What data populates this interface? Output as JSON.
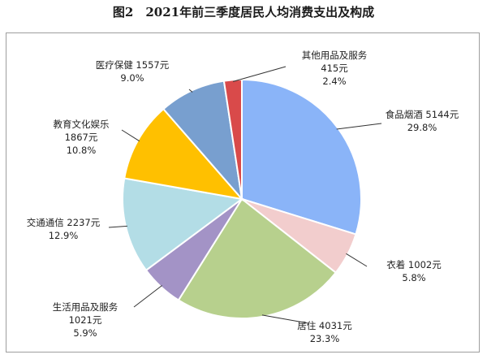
{
  "title": "图2　2021年前三季度居民人均消费支出及构成",
  "chart_data": {
    "type": "pie",
    "title": "图2　2021年前三季度居民人均消费支出及构成",
    "slices": [
      {
        "name": "食品烟酒",
        "amount_label": "5144元",
        "value": 5144,
        "percent": "29.8%",
        "color": "#8ab4f8"
      },
      {
        "name": "衣着",
        "amount_label": "1002元",
        "value": 1002,
        "percent": "5.8%",
        "color": "#f2cdcd"
      },
      {
        "name": "居住",
        "amount_label": "4031元",
        "value": 4031,
        "percent": "23.3%",
        "color": "#b7d08d"
      },
      {
        "name": "生活用品及服务",
        "amount_label": "1021元",
        "value": 1021,
        "percent": "5.9%",
        "color": "#a393c6"
      },
      {
        "name": "交通通信",
        "amount_label": "2237元",
        "value": 2237,
        "percent": "12.9%",
        "color": "#b3dde6"
      },
      {
        "name": "教育文化娱乐",
        "amount_label": "1867元",
        "value": 1867,
        "percent": "10.8%",
        "color": "#ffc000"
      },
      {
        "name": "医疗保健",
        "amount_label": "1557元",
        "value": 1557,
        "percent": "9.0%",
        "color": "#789fcf"
      },
      {
        "name": "其他用品及服务",
        "amount_label": "415元",
        "value": 415,
        "percent": "2.4%",
        "color": "#d94a4a"
      }
    ]
  }
}
